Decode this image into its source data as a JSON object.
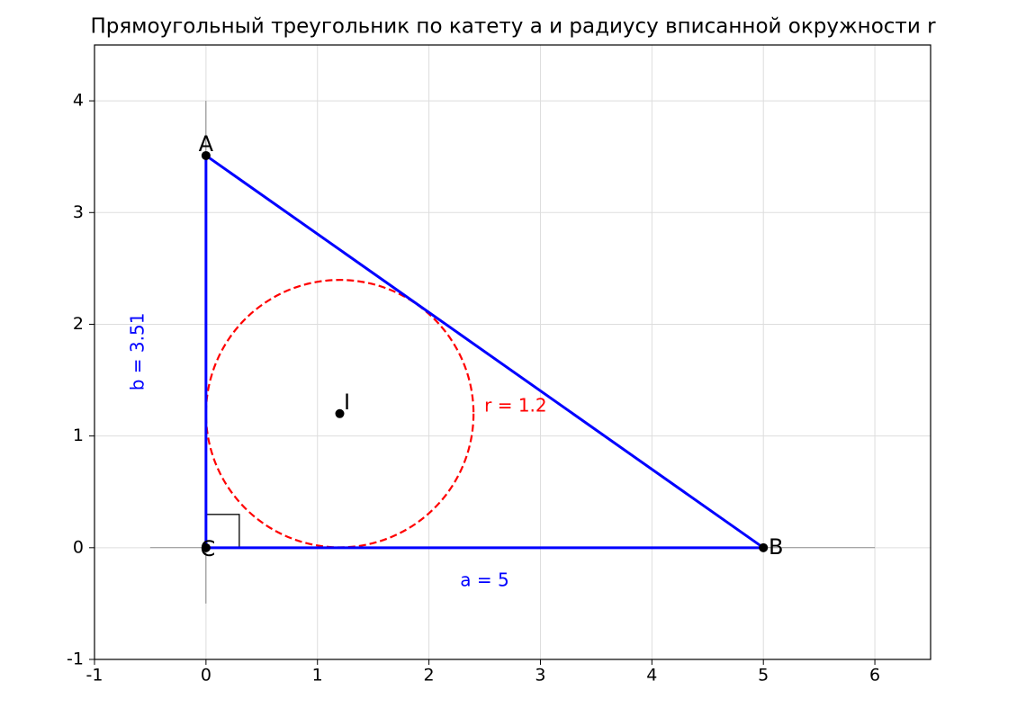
{
  "chart_data": {
    "type": "geometry",
    "title": "Прямоугольный треугольник по катету a и радиусу вписанной окружности r",
    "points": [
      {
        "name": "A",
        "x": 0,
        "y": 3.51
      },
      {
        "name": "B",
        "x": 5,
        "y": 0
      },
      {
        "name": "C",
        "x": 0,
        "y": 0
      },
      {
        "name": "I",
        "x": 1.2,
        "y": 1.2
      }
    ],
    "incircle_r": 1.2,
    "side_labels": {
      "a": "a = 5",
      "b": "b = 3.51",
      "r": "r = 1.2"
    },
    "side_color": "#0000ff",
    "circle_color": "#ff0000",
    "point_color": "#000000",
    "xlim": [
      -1,
      6.5
    ],
    "ylim": [
      -1,
      4.5
    ],
    "xticks": [
      -1,
      0,
      1,
      2,
      3,
      4,
      5,
      6
    ],
    "yticks": [
      -1,
      0,
      1,
      2,
      3,
      4
    ],
    "grid": true
  }
}
